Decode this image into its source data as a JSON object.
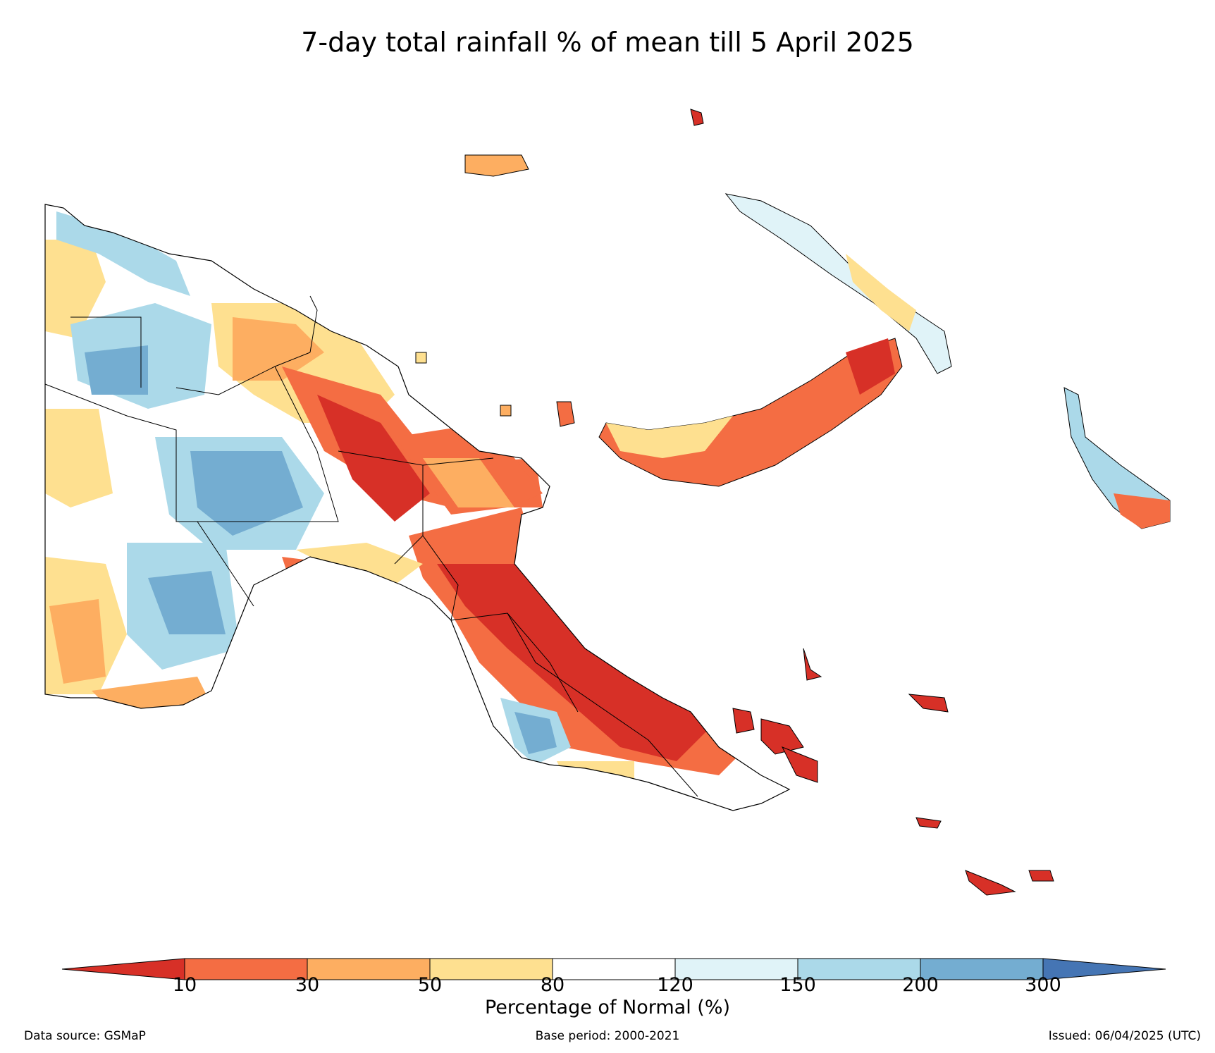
{
  "title": "7-day total rainfall % of mean till 5 April 2025",
  "colorbar": {
    "label": "Percentage of Normal (%)",
    "ticks": [
      "10",
      "30",
      "50",
      "80",
      "120",
      "150",
      "200",
      "300"
    ],
    "colors": {
      "below_10": "#d73027",
      "c10_30": "#f46d43",
      "c30_50": "#fdae61",
      "c50_80": "#fee090",
      "c80_120": "#ffffff",
      "c120_150": "#e0f3f8",
      "c150_200": "#abd9e9",
      "c200_300": "#74add1",
      "above_300": "#4575b4"
    }
  },
  "footer": {
    "source": "Data source: GSMaP",
    "base_period": "Base period: 2000-2021",
    "issued": "Issued: 06/04/2025 (UTC)"
  }
}
